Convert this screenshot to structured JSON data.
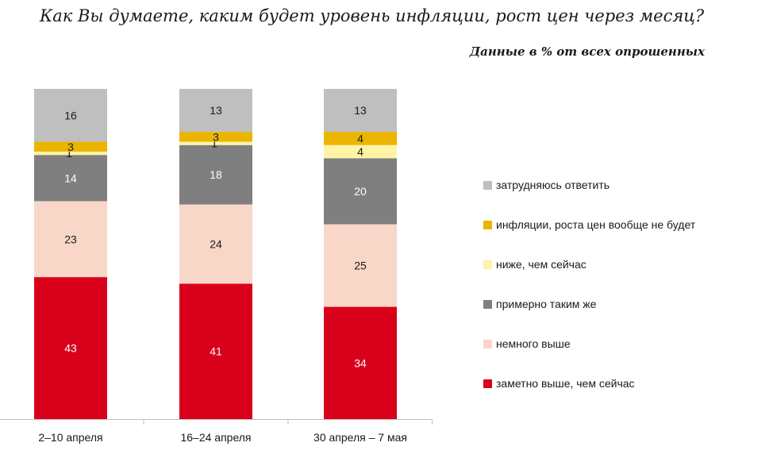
{
  "title": "Как Вы думаете, каким будет уровень инфляции, рост цен через месяц?",
  "subtitle": "Данные в % от всех опрошенных",
  "chart_data": {
    "type": "bar",
    "stacked": true,
    "categories": [
      "2–10 апреля",
      "16–24 апреля",
      "30 апреля – 7 мая"
    ],
    "series": [
      {
        "name": "заметно выше, чем сейчас",
        "values": [
          43,
          41,
          34
        ],
        "color": "#d9001b",
        "label_color": "#ffffff"
      },
      {
        "name": "немного выше",
        "values": [
          23,
          24,
          25
        ],
        "color": "#f8d6c8",
        "label_color": "#1a1a1a"
      },
      {
        "name": "примерно таким же",
        "values": [
          14,
          18,
          20
        ],
        "color": "#7f7f7f",
        "label_color": "#ffffff"
      },
      {
        "name": "ниже, чем сейчас",
        "values": [
          1,
          1,
          4
        ],
        "color": "#fff3a6",
        "label_color": "#1a1a1a"
      },
      {
        "name": "инфляции, роста цен вообще не будет",
        "values": [
          3,
          3,
          4
        ],
        "color": "#eab500",
        "label_color": "#1a1a1a"
      },
      {
        "name": "затрудняюсь ответить",
        "values": [
          16,
          13,
          13
        ],
        "color": "#bfbfbf",
        "label_color": "#1a1a1a"
      }
    ],
    "legend_order": [
      "затрудняюсь ответить",
      "инфляции, роста цен вообще не будет",
      "ниже, чем сейчас",
      "примерно таким же",
      "немного выше",
      "заметно выше, чем сейчас"
    ],
    "legend_position": "right",
    "ylim": [
      0,
      100
    ],
    "grid": false,
    "xlabel": "",
    "ylabel": ""
  }
}
